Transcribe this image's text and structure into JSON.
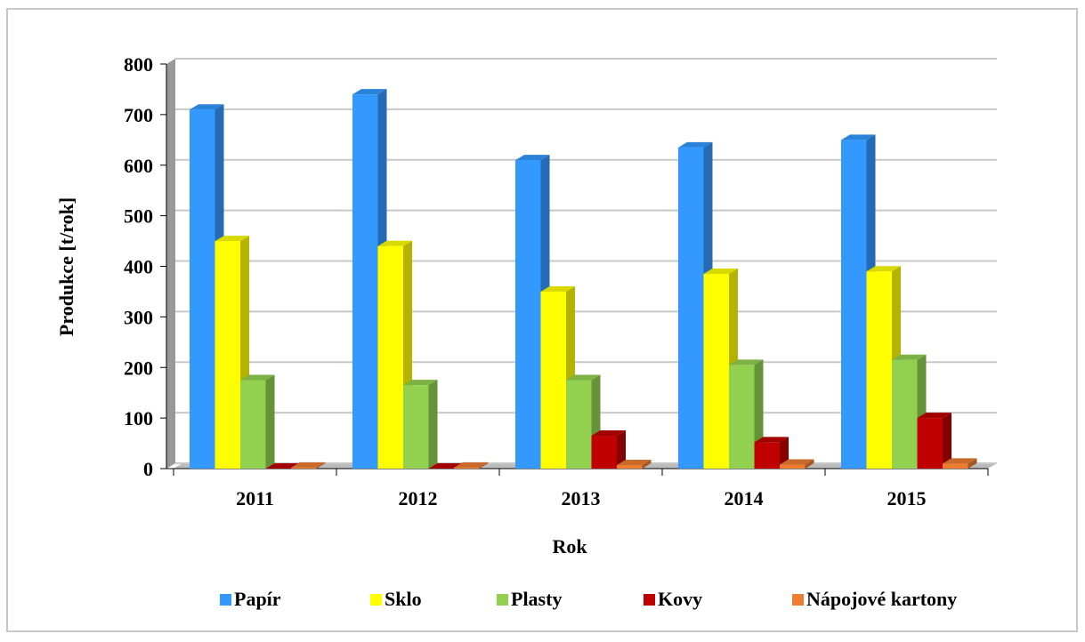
{
  "chart_data": {
    "type": "bar3d",
    "y_axis_label": "Produkce [t/rok]",
    "x_axis_label": "Rok",
    "categories": [
      "2011",
      "2012",
      "2013",
      "2014",
      "2015"
    ],
    "series": [
      {
        "name": "Papír",
        "color": "#3399ff",
        "values": [
          710,
          740,
          610,
          635,
          650
        ]
      },
      {
        "name": "Sklo",
        "color": "#ffff00",
        "values": [
          450,
          440,
          350,
          385,
          390
        ]
      },
      {
        "name": "Plasty",
        "color": "#92d050",
        "values": [
          175,
          165,
          175,
          205,
          215
        ]
      },
      {
        "name": "Kovy",
        "color": "#c00000",
        "values": [
          0,
          0,
          65,
          52,
          100
        ]
      },
      {
        "name": "Nápojové kartony",
        "color": "#ed7d31",
        "values": [
          2,
          2,
          7,
          8,
          10
        ]
      }
    ],
    "ylim": [
      0,
      800
    ],
    "yticks": [
      0,
      100,
      200,
      300,
      400,
      500,
      600,
      700,
      800
    ],
    "grid": true,
    "legend": "bottom"
  }
}
